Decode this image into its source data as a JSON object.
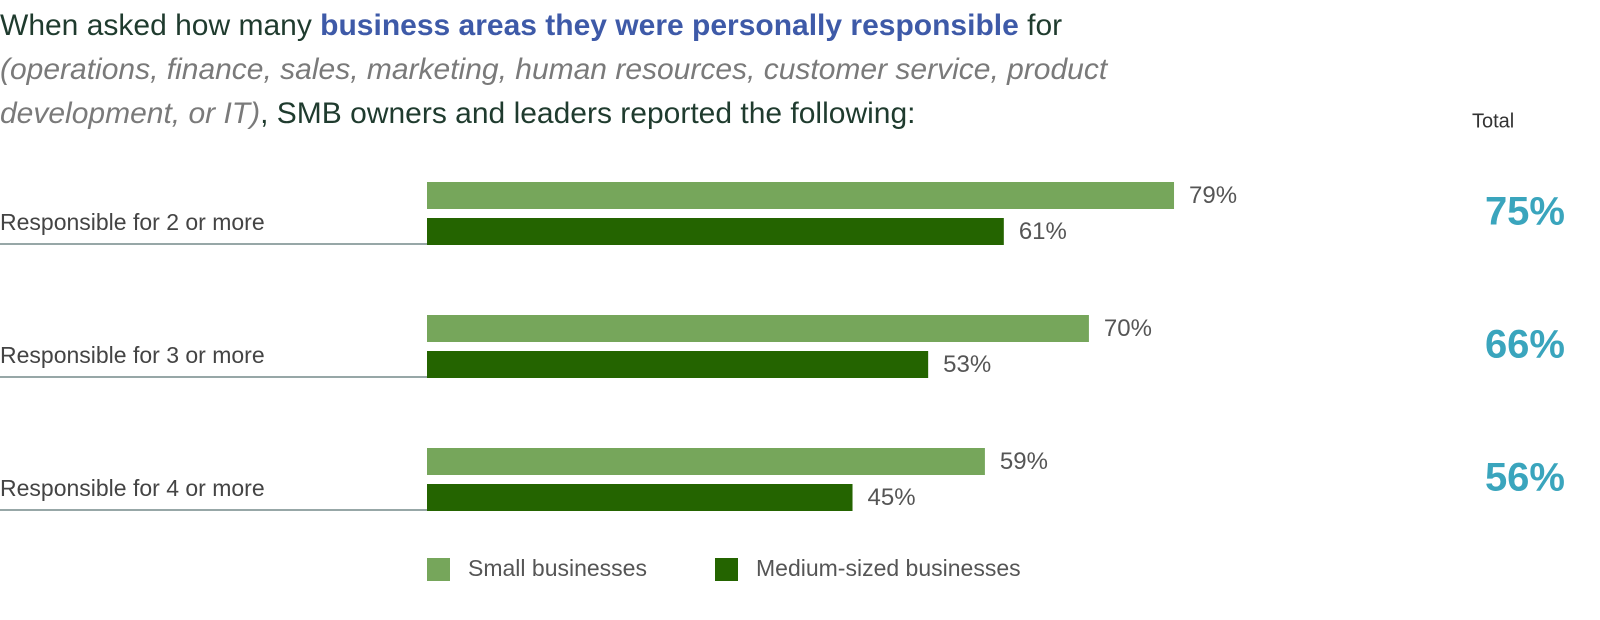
{
  "chart_data": {
    "type": "hbar",
    "title_parts": [
      "When asked how many ",
      "business areas they were personally responsible",
      " for",
      "(operations, finance, sales, marketing, human resources, customer service, product development, or IT)",
      ", SMB owners and leaders reported the following:"
    ],
    "categories": [
      "Responsible for 2 or more",
      "Responsible for 3 or more",
      "Responsible for 4 or more"
    ],
    "series": [
      {
        "name": "Small businesses",
        "color": "#76a65b",
        "values": [
          79,
          70,
          59
        ],
        "value_labels": [
          "79%",
          "70%",
          "59%"
        ]
      },
      {
        "name": "Medium-sized businesses",
        "color": "#246400",
        "values": [
          61,
          53,
          45
        ],
        "value_labels": [
          "61%",
          "53%",
          "45%"
        ]
      }
    ],
    "totals": {
      "label": "Total",
      "color": "#3aa5bd",
      "values": [
        75,
        66,
        56
      ],
      "value_labels": [
        "75%",
        "66%",
        "56%"
      ]
    }
  }
}
